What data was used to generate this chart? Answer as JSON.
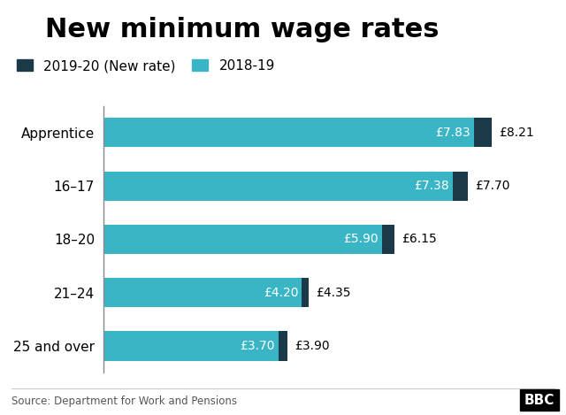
{
  "title": "New minimum wage rates",
  "categories": [
    "25 and over",
    "21–24",
    "18–20",
    "16–17",
    "Apprentice"
  ],
  "values_2018_19": [
    7.83,
    7.38,
    5.9,
    4.2,
    3.7
  ],
  "values_2019_20": [
    8.21,
    7.7,
    6.15,
    4.35,
    3.9
  ],
  "labels_2018_19": [
    "£7.83",
    "£7.38",
    "£5.90",
    "£4.20",
    "£3.70"
  ],
  "labels_2019_20": [
    "£8.21",
    "£7.70",
    "£6.15",
    "£4.35",
    "£3.90"
  ],
  "color_2018_19": "#3ab5c6",
  "color_2019_20": "#1a3a4a",
  "legend_2019_20": "2019-20 (New rate)",
  "legend_2018_19": "2018-19",
  "source": "Source: Department for Work and Pensions",
  "bbc_logo": "BBC",
  "background_color": "#ffffff",
  "bar_height": 0.55,
  "xlim": [
    0,
    9.5
  ],
  "title_fontsize": 22,
  "label_fontsize": 10,
  "tick_fontsize": 11,
  "legend_fontsize": 11
}
